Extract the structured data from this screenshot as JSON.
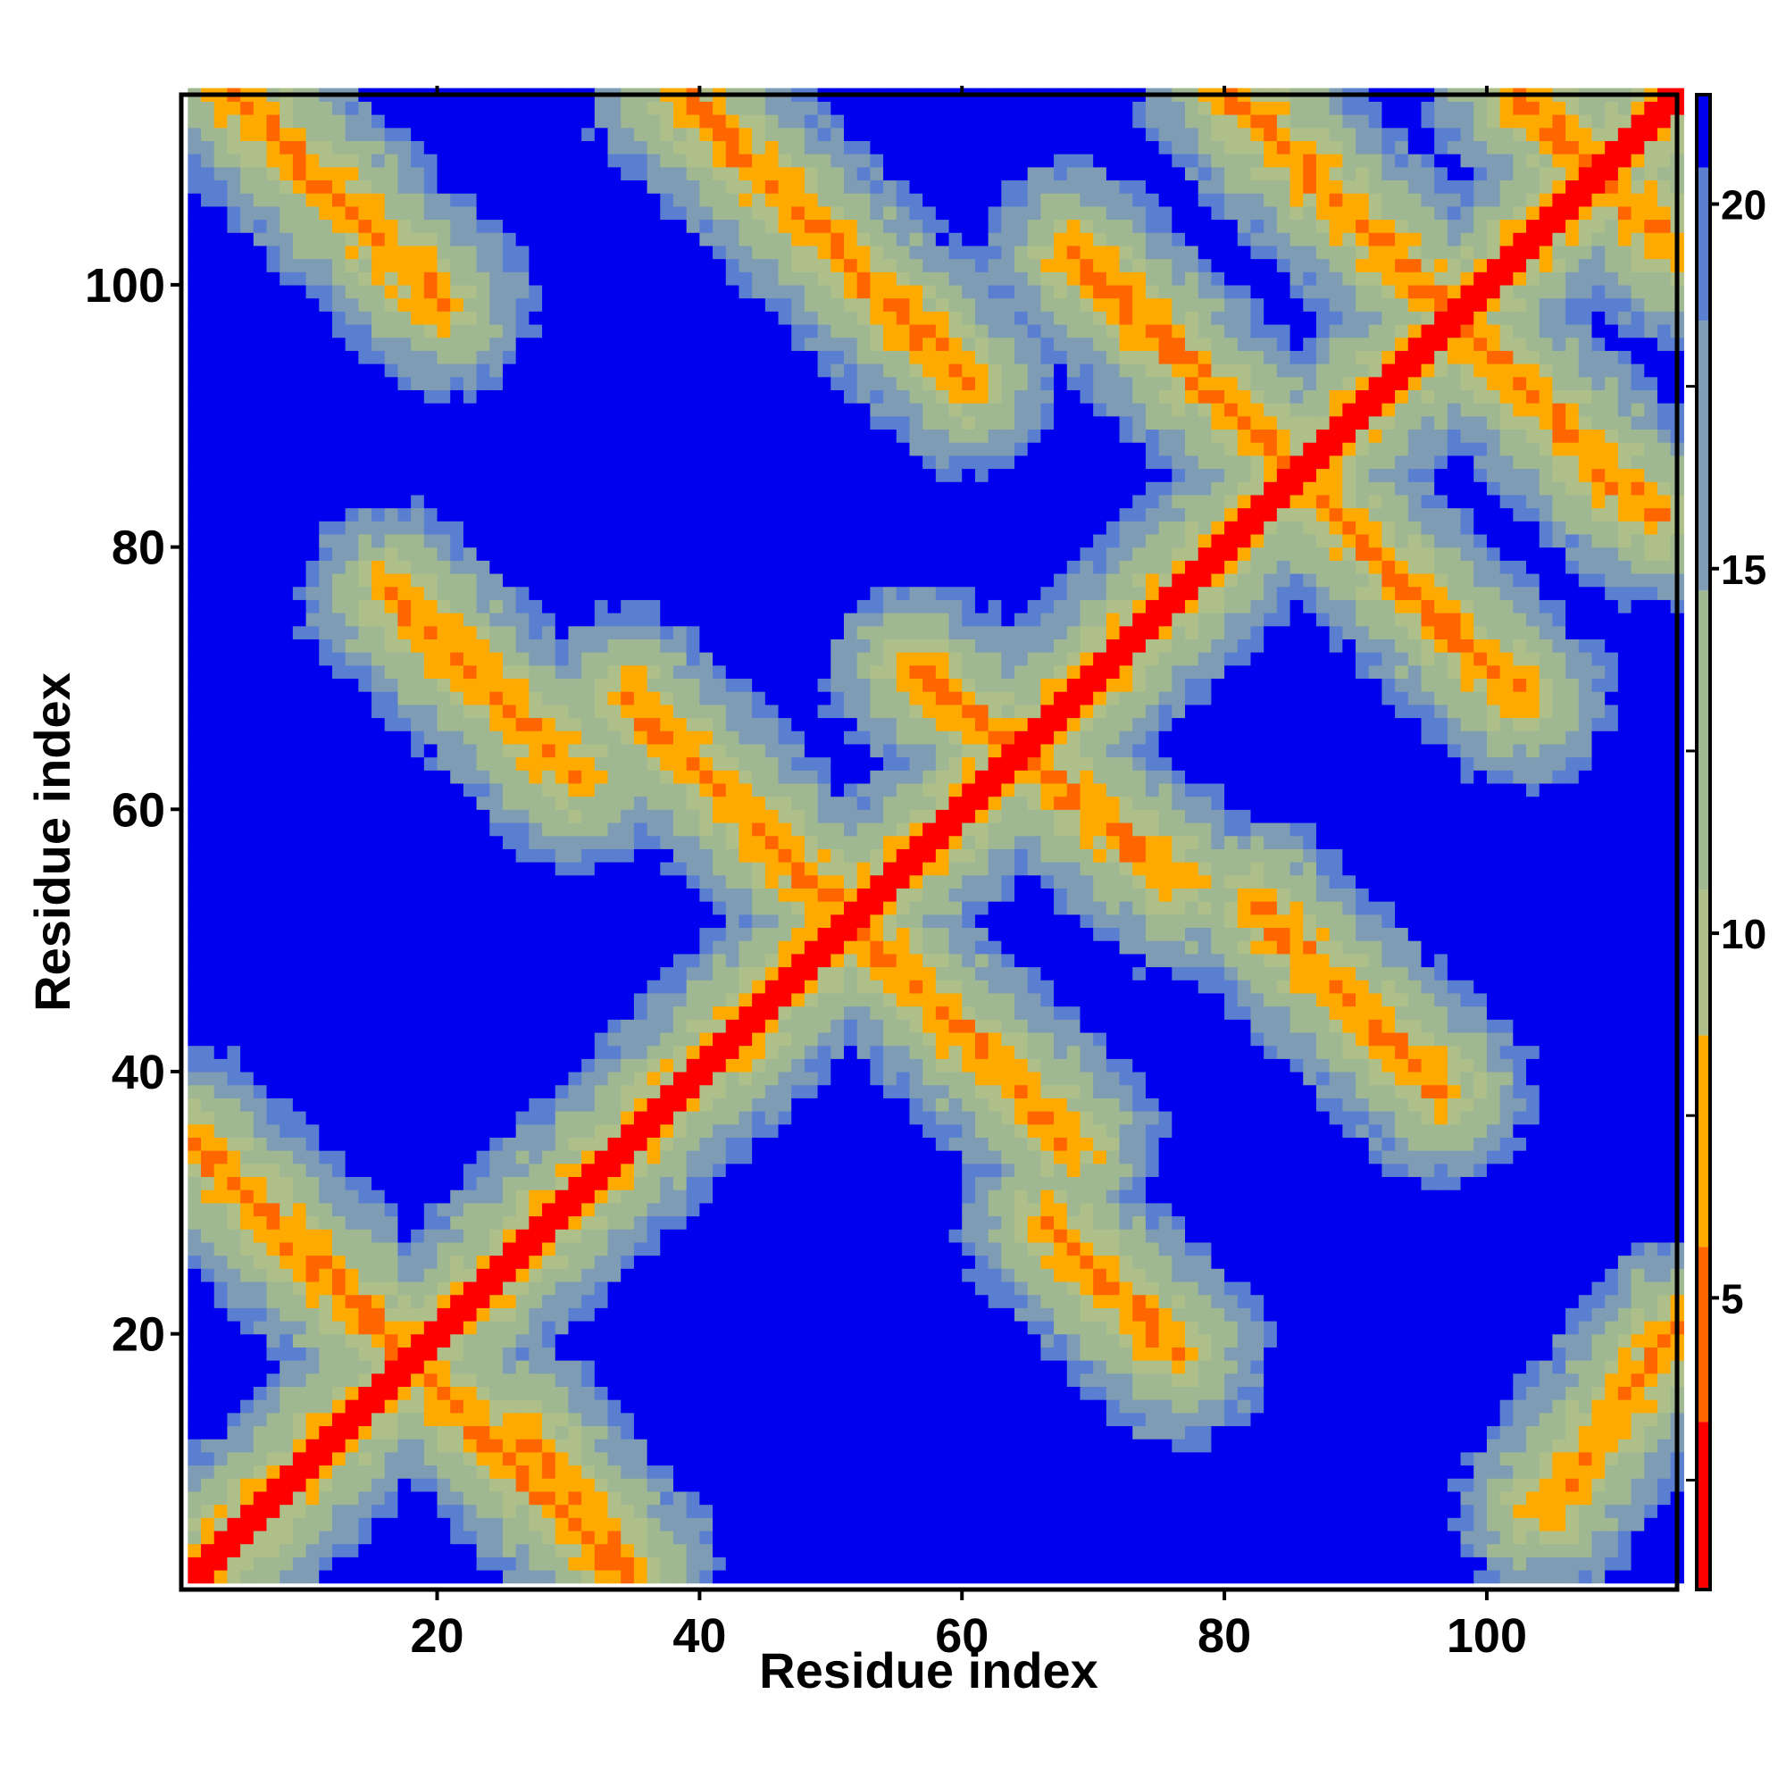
{
  "chart_data": {
    "type": "heatmap",
    "title": "",
    "xlabel": "Residue index",
    "ylabel": "Residue index",
    "n_residues": 114,
    "xlim": [
      1,
      114
    ],
    "ylim": [
      1,
      114
    ],
    "x_ticks": [
      20,
      40,
      60,
      80,
      100
    ],
    "y_ticks": [
      20,
      40,
      60,
      80,
      100
    ],
    "x_tick_labels": [
      "20",
      "40",
      "60",
      "80",
      "100"
    ],
    "y_tick_labels": [
      "20",
      "40",
      "60",
      "80",
      "100"
    ],
    "colorbar": {
      "range": [
        1,
        21.5
      ],
      "ticks": [
        5,
        10,
        15,
        20
      ],
      "tick_labels": [
        "5",
        "10",
        "15",
        "20"
      ],
      "segments": [
        {
          "from": 1,
          "to": 3.3,
          "color": "#ff0000"
        },
        {
          "from": 3.3,
          "to": 5.7,
          "color": "#ff6600"
        },
        {
          "from": 5.7,
          "to": 8.6,
          "color": "#ffaa00"
        },
        {
          "from": 8.6,
          "to": 10.6,
          "color": "#aebf8a"
        },
        {
          "from": 10.6,
          "to": 14.7,
          "color": "#9fb892"
        },
        {
          "from": 14.7,
          "to": 18.4,
          "color": "#7e9cb4"
        },
        {
          "from": 18.4,
          "to": 20.5,
          "color": "#5a7fd0"
        },
        {
          "from": 20.5,
          "to": 21.5,
          "color": "#0000ee"
        }
      ]
    },
    "contact_bands": [
      {
        "name": "main-diagonal",
        "points": [
          [
            1,
            1
          ],
          [
            114,
            114
          ]
        ]
      },
      {
        "name": "anti-diagonal-1",
        "points": [
          [
            1,
            34
          ],
          [
            34,
            1
          ]
        ]
      },
      {
        "name": "anti-diagonal-2",
        "points": [
          [
            34,
            68
          ],
          [
            68,
            34
          ]
        ]
      },
      {
        "name": "anti-diagonal-3",
        "points": [
          [
            68,
            102
          ],
          [
            102,
            68
          ]
        ]
      },
      {
        "name": "anti-diagonal-4",
        "points": [
          [
            102,
            114
          ],
          [
            114,
            102
          ]
        ]
      },
      {
        "name": "anti-diagonal-5",
        "points": [
          [
            4,
            114
          ],
          [
            20,
            98
          ]
        ]
      },
      {
        "name": "anti-diagonal-6",
        "points": [
          [
            38,
            114
          ],
          [
            60,
            92
          ]
        ]
      },
      {
        "name": "anti-diagonal-7",
        "points": [
          [
            80,
            114
          ],
          [
            112,
            82
          ]
        ]
      },
      {
        "name": "anti-diagonal-8",
        "points": [
          [
            16,
            76
          ],
          [
            30,
            62
          ]
        ]
      },
      {
        "name": "anti-diagonal-9",
        "points": [
          [
            56,
            70
          ],
          [
            76,
            54
          ]
        ]
      },
      {
        "name": "anti-diagonal-10",
        "points": [
          [
            82,
            52
          ],
          [
            96,
            38
          ]
        ]
      },
      {
        "name": "anti-diagonal-11",
        "points": [
          [
            26,
            12
          ],
          [
            34,
            2
          ]
        ]
      },
      {
        "name": "anti-diagonal-12",
        "points": [
          [
            66,
            28
          ],
          [
            76,
            18
          ]
        ]
      },
      {
        "name": "anti-diagonal-13",
        "points": [
          [
            104,
            6
          ],
          [
            114,
            20
          ]
        ]
      }
    ]
  }
}
